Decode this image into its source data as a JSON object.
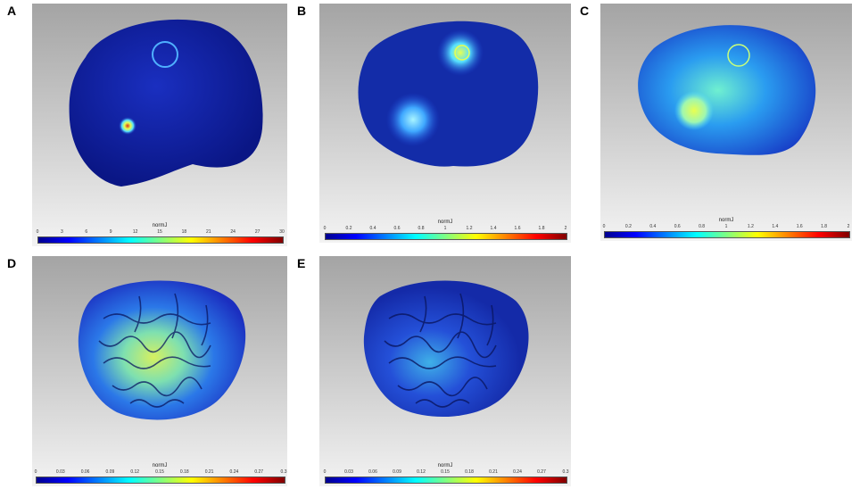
{
  "panels": [
    {
      "letter": "A",
      "colorbar": {
        "title": "normJ",
        "ticks": [
          "0",
          "3",
          "6",
          "9",
          "12",
          "15",
          "18",
          "21",
          "24",
          "27",
          "30"
        ]
      }
    },
    {
      "letter": "B",
      "colorbar": {
        "title": "normJ",
        "ticks": [
          "0",
          "0.2",
          "0.4",
          "0.6",
          "0.8",
          "1",
          "1.2",
          "1.4",
          "1.6",
          "1.8",
          "2"
        ]
      }
    },
    {
      "letter": "C",
      "colorbar": {
        "title": "normJ",
        "ticks": [
          "0",
          "0.2",
          "0.4",
          "0.6",
          "0.8",
          "1",
          "1.2",
          "1.4",
          "1.6",
          "1.8",
          "2"
        ]
      }
    },
    {
      "letter": "D",
      "colorbar": {
        "title": "normJ",
        "ticks": [
          "0",
          "0.03",
          "0.06",
          "0.09",
          "0.12",
          "0.15",
          "0.18",
          "0.21",
          "0.24",
          "0.27",
          "0.3"
        ]
      }
    },
    {
      "letter": "E",
      "colorbar": {
        "title": "normJ",
        "ticks": [
          "0",
          "0.03",
          "0.06",
          "0.09",
          "0.12",
          "0.15",
          "0.18",
          "0.21",
          "0.24",
          "0.27",
          "0.3"
        ]
      }
    }
  ],
  "colors": {
    "head_dark": "#0d1f9e",
    "head_mid": "#1c46d6",
    "hot_cyan": "#56e0ff",
    "hot_yellow": "#e8ff50",
    "hot_red": "#d8331a"
  }
}
